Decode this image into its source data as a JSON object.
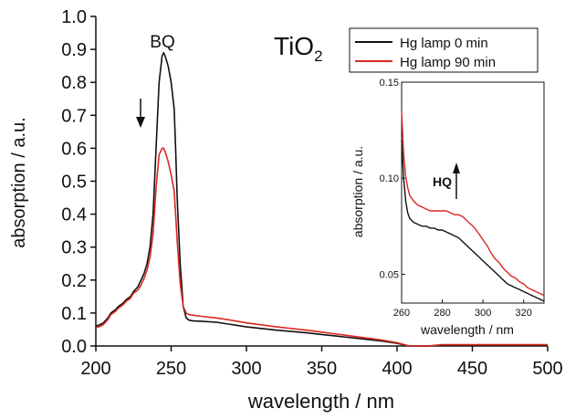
{
  "chart_data": [
    {
      "type": "line",
      "xlabel": "wavelength / nm",
      "ylabel": "absorption / a.u.",
      "xlim": [
        200,
        500
      ],
      "ylim": [
        0.0,
        1.0
      ],
      "xticks": [
        "200",
        "250",
        "300",
        "350",
        "400",
        "450",
        "500"
      ],
      "yticks": [
        "0.0",
        "0.1",
        "0.2",
        "0.3",
        "0.4",
        "0.5",
        "0.6",
        "0.7",
        "0.8",
        "0.9",
        "1.0"
      ],
      "grid": false,
      "legend_position": "top-right",
      "annotations": [
        {
          "text": "BQ",
          "x": 244,
          "y": 0.945
        },
        {
          "text": "TiO",
          "subscript": "2",
          "x": 300,
          "y": 0.93
        }
      ],
      "arrow": {
        "direction": "down",
        "x": 230,
        "y_from": 0.79,
        "y_to": 0.64
      },
      "series": [
        {
          "name": "Hg lamp 0 min",
          "color": "#111111",
          "x": [
            200,
            203,
            205,
            208,
            210,
            213,
            215,
            218,
            220,
            223,
            225,
            228,
            230,
            232,
            234,
            236,
            238,
            240,
            242,
            244,
            245,
            246,
            248,
            250,
            252,
            253,
            254,
            256,
            258,
            260,
            262,
            265,
            270,
            280,
            290,
            300,
            320,
            340,
            350,
            360,
            370,
            380,
            390,
            400,
            405,
            408,
            420,
            430,
            440,
            450,
            460,
            470,
            480,
            490,
            500
          ],
          "y": [
            0.06,
            0.065,
            0.07,
            0.085,
            0.1,
            0.11,
            0.12,
            0.13,
            0.14,
            0.15,
            0.165,
            0.18,
            0.2,
            0.22,
            0.25,
            0.3,
            0.4,
            0.6,
            0.8,
            0.88,
            0.89,
            0.88,
            0.85,
            0.8,
            0.72,
            0.6,
            0.45,
            0.25,
            0.12,
            0.085,
            0.078,
            0.076,
            0.075,
            0.072,
            0.065,
            0.058,
            0.048,
            0.04,
            0.035,
            0.03,
            0.025,
            0.02,
            0.015,
            0.008,
            0.003,
            0.0,
            0.0,
            0.002,
            0.002,
            0.002,
            0.002,
            0.002,
            0.002,
            0.002,
            0.002
          ]
        },
        {
          "name": "Hg lamp 90 min",
          "color": "#d9281f",
          "x": [
            200,
            203,
            205,
            208,
            210,
            213,
            215,
            218,
            220,
            223,
            225,
            228,
            230,
            232,
            234,
            236,
            238,
            240,
            242,
            244,
            245,
            246,
            248,
            250,
            252,
            253,
            254,
            256,
            258,
            260,
            262,
            265,
            270,
            280,
            290,
            300,
            320,
            340,
            350,
            360,
            370,
            380,
            390,
            400,
            405,
            408,
            420,
            430,
            440,
            450,
            460,
            470,
            480,
            490,
            500
          ],
          "y": [
            0.055,
            0.06,
            0.065,
            0.08,
            0.095,
            0.105,
            0.115,
            0.125,
            0.135,
            0.145,
            0.16,
            0.17,
            0.185,
            0.205,
            0.23,
            0.27,
            0.34,
            0.48,
            0.58,
            0.6,
            0.6,
            0.59,
            0.56,
            0.52,
            0.47,
            0.4,
            0.32,
            0.19,
            0.12,
            0.1,
            0.095,
            0.093,
            0.09,
            0.085,
            0.078,
            0.07,
            0.058,
            0.048,
            0.042,
            0.036,
            0.03,
            0.024,
            0.018,
            0.01,
            0.004,
            0.0,
            0.0,
            0.004,
            0.004,
            0.004,
            0.004,
            0.004,
            0.004,
            0.004,
            0.004
          ]
        }
      ]
    },
    {
      "type": "line",
      "inset": true,
      "xlabel": "wavelength / nm",
      "ylabel": "absorption / a.u.",
      "xlim": [
        260,
        330
      ],
      "ylim": [
        0.035,
        0.15
      ],
      "xticks": [
        "260",
        "280",
        "300",
        "320"
      ],
      "yticks": [
        "0.05",
        "0.10",
        "0.15"
      ],
      "annotations": [
        {
          "text": "HQ",
          "x": 286,
          "y": 0.091
        }
      ],
      "arrow": {
        "direction": "up",
        "x": 292,
        "y_from": 0.082,
        "y_to": 0.105
      },
      "series": [
        {
          "name": "Hg lamp 0 min",
          "color": "#111111",
          "x": [
            260,
            261,
            262,
            263,
            264,
            266,
            268,
            270,
            272,
            274,
            276,
            278,
            280,
            282,
            284,
            286,
            288,
            290,
            292,
            294,
            296,
            298,
            300,
            302,
            304,
            306,
            308,
            310,
            312,
            314,
            316,
            318,
            320,
            322,
            324,
            326,
            328,
            330
          ],
          "y": [
            0.12,
            0.1,
            0.088,
            0.082,
            0.079,
            0.077,
            0.076,
            0.075,
            0.075,
            0.074,
            0.074,
            0.073,
            0.073,
            0.072,
            0.071,
            0.07,
            0.069,
            0.067,
            0.065,
            0.063,
            0.061,
            0.059,
            0.057,
            0.055,
            0.053,
            0.051,
            0.049,
            0.047,
            0.045,
            0.044,
            0.043,
            0.042,
            0.041,
            0.04,
            0.039,
            0.038,
            0.037,
            0.036
          ]
        },
        {
          "name": "Hg lamp 90 min",
          "color": "#d9281f",
          "x": [
            260,
            261,
            262,
            263,
            264,
            266,
            268,
            270,
            272,
            274,
            276,
            278,
            280,
            282,
            284,
            286,
            288,
            290,
            292,
            294,
            296,
            298,
            300,
            302,
            304,
            306,
            308,
            310,
            312,
            314,
            316,
            318,
            320,
            322,
            324,
            326,
            328,
            330
          ],
          "y": [
            0.135,
            0.113,
            0.101,
            0.095,
            0.091,
            0.088,
            0.086,
            0.085,
            0.084,
            0.083,
            0.083,
            0.083,
            0.083,
            0.083,
            0.082,
            0.081,
            0.081,
            0.08,
            0.078,
            0.076,
            0.074,
            0.071,
            0.068,
            0.065,
            0.061,
            0.058,
            0.056,
            0.053,
            0.051,
            0.049,
            0.048,
            0.046,
            0.045,
            0.043,
            0.042,
            0.041,
            0.04,
            0.039
          ]
        }
      ]
    }
  ]
}
